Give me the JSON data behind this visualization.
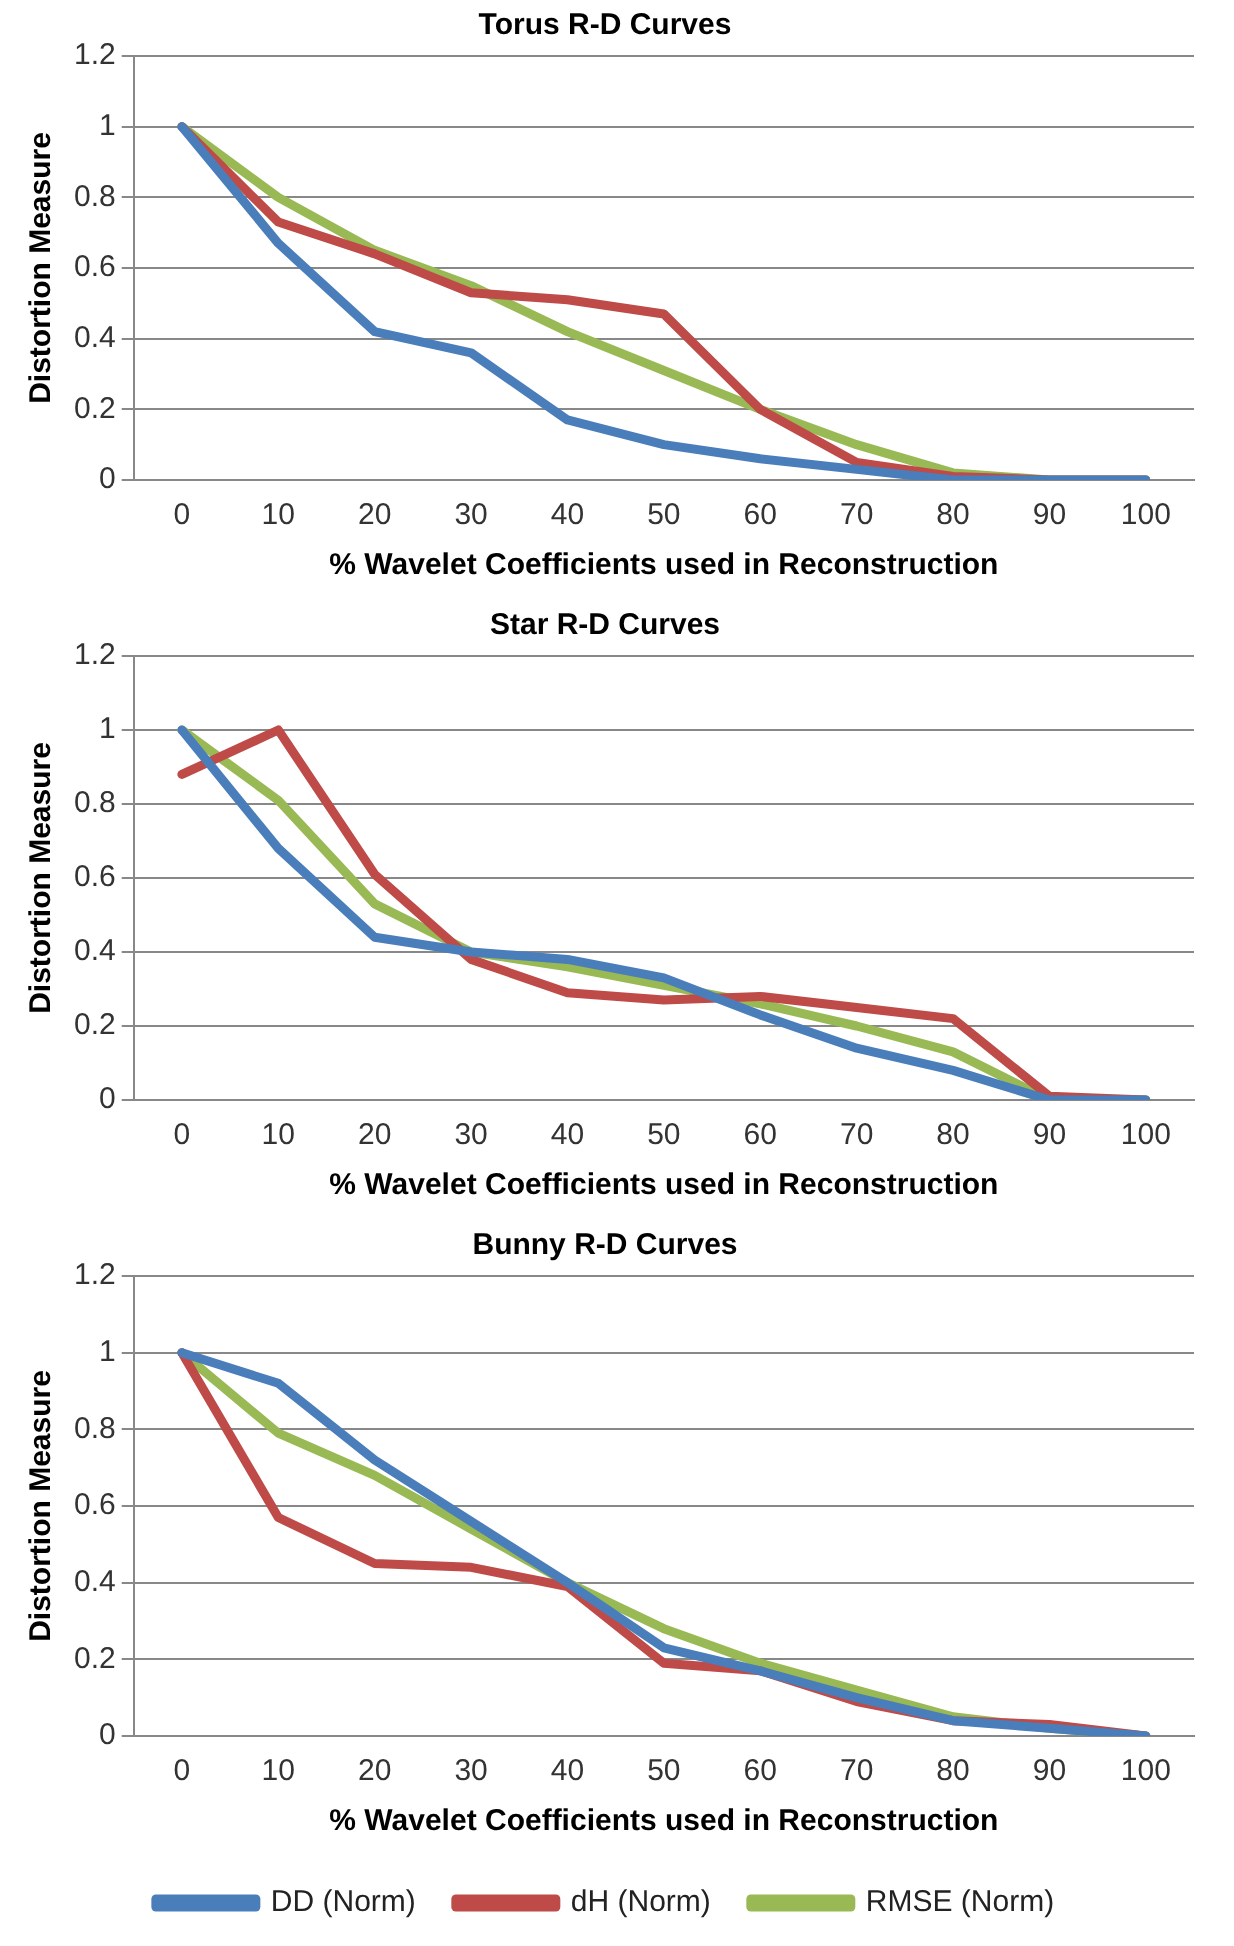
{
  "chart_data": [
    {
      "type": "line",
      "title": "Torus R-D Curves",
      "xlabel": "% Wavelet Coefficients used in Reconstruction",
      "ylabel": "Distortion Measure",
      "categories": [
        "0",
        "10",
        "20",
        "30",
        "40",
        "50",
        "60",
        "70",
        "80",
        "90",
        "100"
      ],
      "series": [
        {
          "color": "#4a7ebb",
          "values": [
            1,
            0.67,
            0.42,
            0.36,
            0.17,
            0.1,
            0.06,
            0.03,
            0,
            0,
            0
          ]
        },
        {
          "color": "#be4b48",
          "values": [
            1,
            0.73,
            0.64,
            0.53,
            0.51,
            0.47,
            0.2,
            0.05,
            0.01,
            0,
            0
          ]
        },
        {
          "color": "#98b954",
          "values": [
            1,
            0.8,
            0.65,
            0.55,
            0.42,
            0.31,
            0.2,
            0.1,
            0.02,
            0,
            0
          ]
        }
      ],
      "ylim": [
        0,
        1.2
      ],
      "yticks": [
        0,
        0.2,
        0.4,
        0.6,
        0.8,
        1,
        1.2
      ],
      "grid": "y",
      "legend": false,
      "marker": "none",
      "line_style": "solid"
    },
    {
      "type": "line",
      "title": "Star R-D Curves",
      "xlabel": "% Wavelet Coefficients used in Reconstruction",
      "ylabel": "Distortion Measure",
      "categories": [
        "0",
        "10",
        "20",
        "30",
        "40",
        "50",
        "60",
        "70",
        "80",
        "90",
        "100"
      ],
      "series": [
        {
          "color": "#4a7ebb",
          "values": [
            1,
            0.68,
            0.44,
            0.4,
            0.38,
            0.33,
            0.23,
            0.14,
            0.08,
            0,
            0
          ]
        },
        {
          "color": "#be4b48",
          "values": [
            0.88,
            1,
            0.61,
            0.38,
            0.29,
            0.27,
            0.28,
            0.25,
            0.22,
            0.01,
            0
          ]
        },
        {
          "color": "#98b954",
          "values": [
            1,
            0.81,
            0.53,
            0.4,
            0.36,
            0.31,
            0.26,
            0.2,
            0.13,
            0,
            0
          ]
        }
      ],
      "ylim": [
        0,
        1.2
      ],
      "yticks": [
        0,
        0.2,
        0.4,
        0.6,
        0.8,
        1,
        1.2
      ],
      "grid": "y",
      "legend": false,
      "marker": "none",
      "line_style": "solid"
    },
    {
      "type": "line",
      "title": "Bunny R-D Curves",
      "xlabel": "% Wavelet Coefficients used in Reconstruction",
      "ylabel": "Distortion Measure",
      "categories": [
        "0",
        "10",
        "20",
        "30",
        "40",
        "50",
        "60",
        "70",
        "80",
        "90",
        "100"
      ],
      "series": [
        {
          "name": "DD (Norm)",
          "color": "#4a7ebb",
          "values": [
            1,
            0.92,
            0.72,
            0.56,
            0.4,
            0.23,
            0.17,
            0.1,
            0.04,
            0.02,
            0
          ]
        },
        {
          "name": "dH (Norm)",
          "color": "#be4b48",
          "values": [
            1,
            0.57,
            0.45,
            0.44,
            0.39,
            0.19,
            0.17,
            0.09,
            0.04,
            0.03,
            0
          ]
        },
        {
          "name": "RMSE (Norm)",
          "color": "#98b954",
          "values": [
            1,
            0.79,
            0.68,
            0.54,
            0.4,
            0.28,
            0.19,
            0.12,
            0.05,
            0.02,
            0
          ]
        }
      ],
      "ylim": [
        0,
        1.2
      ],
      "yticks": [
        0,
        0.2,
        0.4,
        0.6,
        0.8,
        1,
        1.2
      ],
      "grid": "y",
      "legend": "bottom",
      "marker": "none",
      "line_style": "solid"
    }
  ]
}
